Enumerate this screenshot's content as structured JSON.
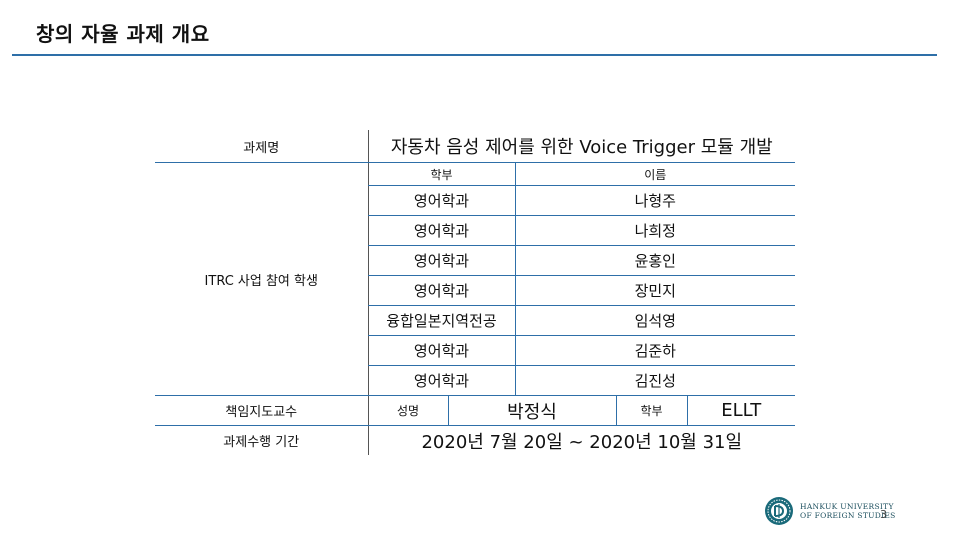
{
  "title": "창의 자율 과제 개요",
  "table": {
    "project_name_label": "과제명",
    "project_name": "자동차 음성 제어를 위한 Voice Trigger 모듈 개발",
    "students_label": "ITRC 사업 참여 학생",
    "dept_header": "학부",
    "name_header": "이름",
    "students": [
      {
        "dept": "영어학과",
        "name": "나형주"
      },
      {
        "dept": "영어학과",
        "name": "나희정"
      },
      {
        "dept": "영어학과",
        "name": "윤홍인"
      },
      {
        "dept": "영어학과",
        "name": "장민지"
      },
      {
        "dept": "융합일본지역전공",
        "name": "임석영"
      },
      {
        "dept": "영어학과",
        "name": "김준하"
      },
      {
        "dept": "영어학과",
        "name": "김진성"
      }
    ],
    "advisor_label": "책임지도교수",
    "advisor_name_label": "성명",
    "advisor_name": "박정식",
    "advisor_dept_label": "학부",
    "advisor_dept": "ELLT",
    "period_label": "과제수행 기간",
    "period": "2020년 7월 20일 ~ 2020년 10월 31일"
  },
  "footer": {
    "university_line1": "HANKUK UNIVERSITY",
    "university_line2": "OF FOREIGN STUDIES",
    "page_number": "3",
    "seal_icon": "university-seal-icon"
  },
  "colors": {
    "accent": "#2e6fa8",
    "seal": "#1a6a7a"
  }
}
